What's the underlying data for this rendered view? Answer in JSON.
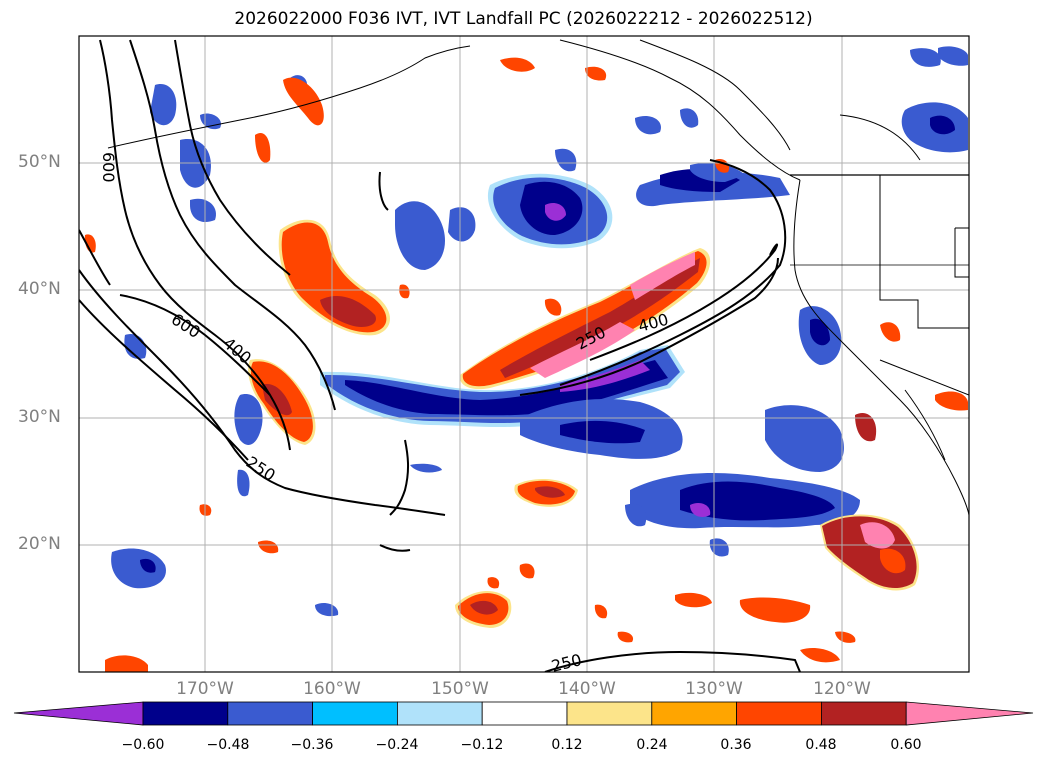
{
  "title": "2026022000 F036 IVT, IVT Landfall PC (2026022212 - 2026022512)",
  "map": {
    "lat_labels": [
      "50°N",
      "40°N",
      "30°N",
      "20°N"
    ],
    "lon_labels": [
      "170°W",
      "160°W",
      "150°W",
      "140°W",
      "130°W",
      "120°W"
    ],
    "contour_labels": [
      "600",
      "600",
      "400",
      "250",
      "250",
      "400",
      "250"
    ]
  },
  "colorbar": {
    "ticks": [
      "−0.60",
      "−0.48",
      "−0.36",
      "−0.24",
      "−0.12",
      "0.12",
      "0.24",
      "0.36",
      "0.48",
      "0.60"
    ],
    "colors": [
      "#9b2fd6",
      "#00008b",
      "#3a5bd0",
      "#00bfff",
      "#b0e2fa",
      "#ffffff",
      "#fce48a",
      "#ffa500",
      "#ff4500",
      "#b22222",
      "#ff82b0"
    ]
  }
}
